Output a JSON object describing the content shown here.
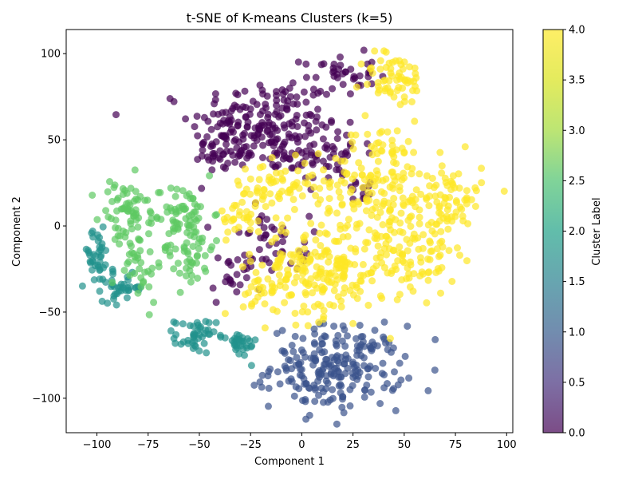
{
  "chart_data": {
    "type": "scatter",
    "title": "t-SNE of K-means Clusters (k=5)",
    "xlabel": "Component 1",
    "ylabel": "Component 2",
    "xlim": [
      -115,
      103
    ],
    "ylim": [
      -120,
      114
    ],
    "xticks": [
      -100,
      -75,
      -50,
      -25,
      0,
      25,
      50,
      75,
      100
    ],
    "yticks": [
      -100,
      -50,
      0,
      50,
      100
    ],
    "grid": false,
    "point_alpha": 0.7,
    "colorbar": {
      "label": "Cluster Label",
      "range": [
        0.0,
        4.0
      ],
      "ticks": [
        "0.0",
        "0.5",
        "1.0",
        "1.5",
        "2.0",
        "2.5",
        "3.0",
        "3.5",
        "4.0"
      ],
      "colormap": "viridis",
      "colors": [
        "#440154",
        "#3b528b",
        "#21918c",
        "#5ec962",
        "#fde725"
      ]
    },
    "series": [
      {
        "cluster": 0,
        "color": "#440154",
        "regions": [
          {
            "cx": -18,
            "cy": 58,
            "sx": 18,
            "sy": 14,
            "n": 190
          },
          {
            "cx": -38,
            "cy": 45,
            "sx": 7,
            "sy": 10,
            "n": 45
          },
          {
            "cx": 18,
            "cy": 88,
            "sx": 9,
            "sy": 6,
            "n": 40
          },
          {
            "cx": 12,
            "cy": 42,
            "sx": 10,
            "sy": 9,
            "n": 55
          },
          {
            "cx": -8,
            "cy": -10,
            "sx": 6,
            "sy": 8,
            "n": 25
          },
          {
            "cx": -32,
            "cy": -30,
            "sx": 6,
            "sy": 8,
            "n": 25
          },
          {
            "cx": -22,
            "cy": -2,
            "sx": 5,
            "sy": 6,
            "n": 15
          },
          {
            "cx": 30,
            "cy": 20,
            "sx": 5,
            "sy": 4,
            "n": 12
          }
        ]
      },
      {
        "cluster": 1,
        "color": "#3b528b",
        "regions": [
          {
            "cx": 17,
            "cy": -82,
            "sx": 16,
            "sy": 12,
            "n": 230
          }
        ]
      },
      {
        "cluster": 2,
        "color": "#21918c",
        "regions": [
          {
            "cx": -52,
            "cy": -64,
            "sx": 5,
            "sy": 5,
            "n": 45
          },
          {
            "cx": -30,
            "cy": -69,
            "sx": 4,
            "sy": 4,
            "n": 30
          },
          {
            "cx": -100,
            "cy": -18,
            "sx": 4,
            "sy": 8,
            "n": 40
          },
          {
            "cx": -87,
            "cy": -36,
            "sx": 5,
            "sy": 4,
            "n": 35
          }
        ]
      },
      {
        "cluster": 3,
        "color": "#5ec962",
        "regions": [
          {
            "cx": -87,
            "cy": 8,
            "sx": 6,
            "sy": 10,
            "n": 55
          },
          {
            "cx": -80,
            "cy": -20,
            "sx": 6,
            "sy": 12,
            "n": 40
          },
          {
            "cx": -55,
            "cy": -12,
            "sx": 6,
            "sy": 12,
            "n": 60
          },
          {
            "cx": -60,
            "cy": 8,
            "sx": 8,
            "sy": 8,
            "n": 55
          }
        ]
      },
      {
        "cluster": 4,
        "color": "#fde725",
        "regions": [
          {
            "cx": 45,
            "cy": 85,
            "sx": 8,
            "sy": 8,
            "n": 60
          },
          {
            "cx": 38,
            "cy": 25,
            "sx": 12,
            "sy": 18,
            "n": 150
          },
          {
            "cx": 70,
            "cy": 15,
            "sx": 9,
            "sy": 12,
            "n": 90
          },
          {
            "cx": 10,
            "cy": -25,
            "sx": 16,
            "sy": 14,
            "n": 210
          },
          {
            "cx": -10,
            "cy": 22,
            "sx": 12,
            "sy": 8,
            "n": 70
          },
          {
            "cx": -30,
            "cy": 5,
            "sx": 6,
            "sy": 5,
            "n": 25
          },
          {
            "cx": 55,
            "cy": -20,
            "sx": 10,
            "sy": 10,
            "n": 70
          },
          {
            "cx": -18,
            "cy": -35,
            "sx": 6,
            "sy": 7,
            "n": 30
          }
        ]
      }
    ]
  }
}
